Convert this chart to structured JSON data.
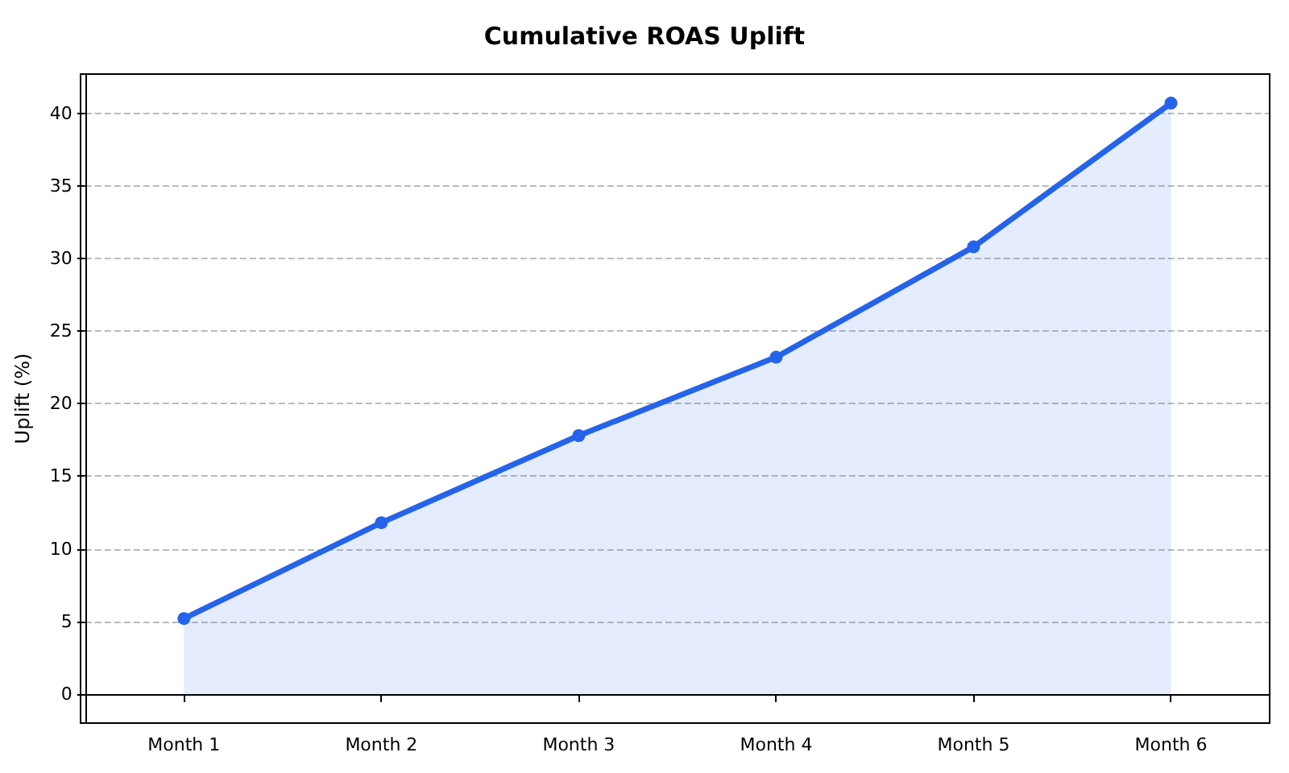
{
  "chart_data": {
    "type": "area",
    "title": "Cumulative ROAS Uplift",
    "ylabel": "Uplift (%)",
    "categories": [
      "Month 1",
      "Month 2",
      "Month 3",
      "Month 4",
      "Month 5",
      "Month 6"
    ],
    "series": [
      {
        "color": "#2563eb",
        "values": [
          5.2,
          11.8,
          17.8,
          23.2,
          30.8,
          40.7
        ]
      }
    ],
    "ylim": [
      -2,
      42.7
    ],
    "yticks": [
      0,
      5,
      10,
      15,
      20,
      25,
      30,
      35,
      40
    ],
    "grid": "y",
    "marker": "circle"
  }
}
